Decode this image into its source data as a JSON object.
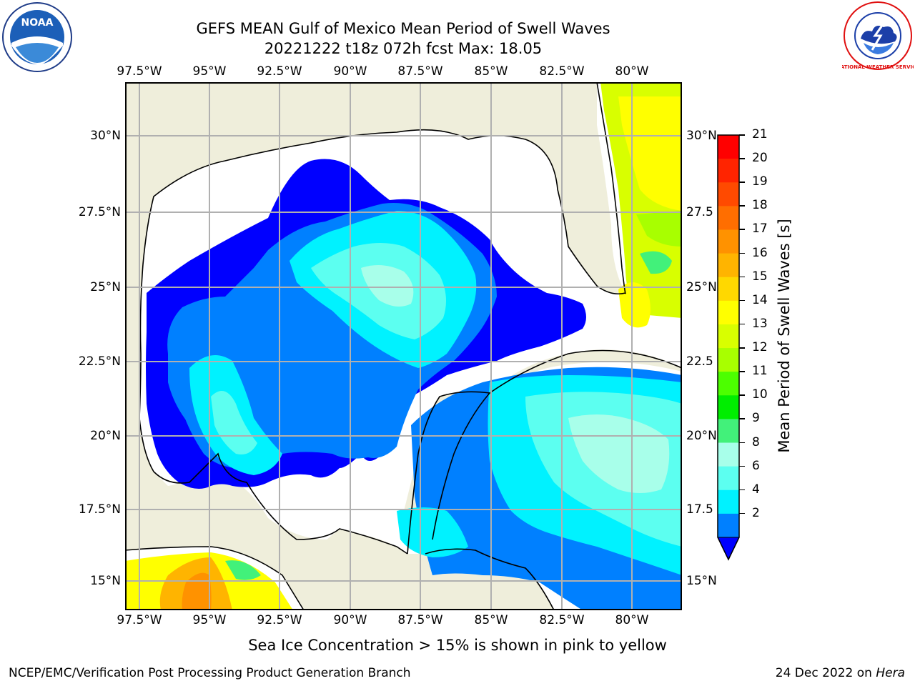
{
  "header": {
    "title_line1": "GEFS MEAN Gulf of Mexico Mean Period of Swell Waves",
    "title_line2": "20221222 t18z 072h fcst   Max: 18.05"
  },
  "logos": {
    "left": "NOAA",
    "right": "NATIONAL WEATHER SERVICE"
  },
  "map": {
    "lon_labels": [
      "97.5°W",
      "95°W",
      "92.5°W",
      "90°W",
      "87.5°W",
      "85°W",
      "82.5°W",
      "80°W"
    ],
    "lat_labels_left": [
      "30°N",
      "27.5°N",
      "25°N",
      "22.5°N",
      "20°N",
      "17.5°N",
      "15°N"
    ],
    "lat_labels_right": [
      "30°N",
      "27.5",
      "25°N",
      "22.5",
      "20°N",
      "17.5",
      "15°N"
    ]
  },
  "colorbar": {
    "label": "Mean Period of Swell Waves [s]",
    "ticks": [
      "21",
      "20",
      "19",
      "18",
      "17",
      "16",
      "15",
      "14",
      "13",
      "12",
      "11",
      "10",
      "9",
      "8",
      "6",
      "4",
      "2"
    ],
    "colors": [
      "#ff0000",
      "#ff2400",
      "#ff4a00",
      "#ff6e00",
      "#ff9200",
      "#ffb400",
      "#ffd800",
      "#ffff00",
      "#d8ff00",
      "#a8ff00",
      "#4cff00",
      "#00ee00",
      "#42f17a",
      "#a8ffea",
      "#5cfff0",
      "#00f2ff",
      "#0080ff"
    ],
    "min_arrow_color": "#0000ff"
  },
  "note": "Sea Ice Concentration > 15% is shown in pink to yellow",
  "footer": {
    "left": "NCEP/EMC/Verification Post Processing Product Generation Branch",
    "right_date": "24 Dec 2022 on",
    "right_machine": "Hera"
  },
  "colors": {
    "land": "#efeedb",
    "blue_lt2": "#0000ff",
    "blue_2_4": "#0080ff",
    "cyan_4_6": "#00f2ff",
    "cyan_6_8": "#5cfff0",
    "cyan_8_9": "#a8ffea"
  }
}
